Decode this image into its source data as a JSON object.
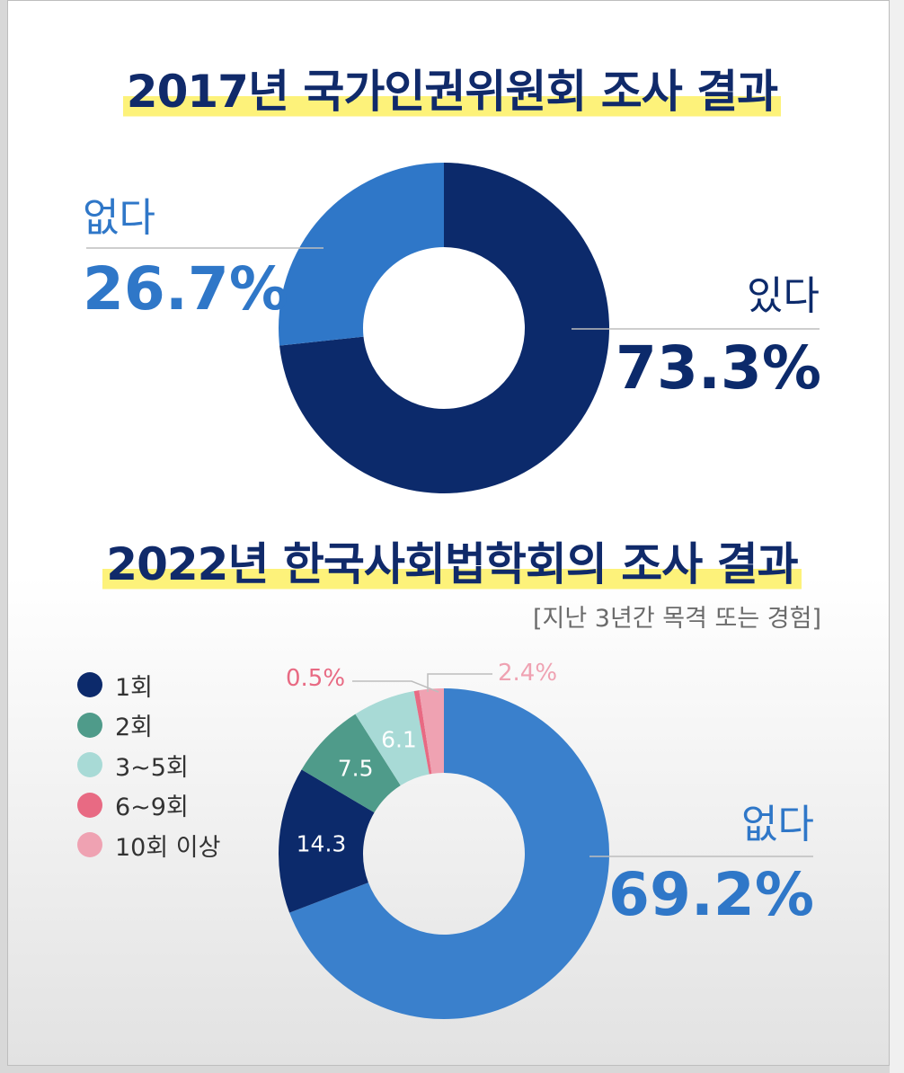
{
  "titles": {
    "top": "2017년 국가인권위원회 조사 결과",
    "bottom": "2022년 한국사회법학회의 조사 결과",
    "bottom_sub": "[지난 3년간 목격 또는 경험]"
  },
  "colors": {
    "navy": "#0c2a6b",
    "blue": "#2f77c8",
    "mid_blue": "#3a80cc",
    "teal": "#4f9b8a",
    "light_teal": "#a8dad6",
    "red_pink": "#e86a83",
    "pink": "#efa2b2",
    "highlight": "#fdf27a"
  },
  "chart_data": [
    {
      "type": "pie",
      "title": "2017년 국가인권위원회 조사 결과",
      "slices": [
        {
          "label": "있다",
          "value": 73.3,
          "display": "73.3%",
          "color": "#0c2a6b"
        },
        {
          "label": "없다",
          "value": 26.7,
          "display": "26.7%",
          "color": "#2f77c8"
        }
      ]
    },
    {
      "type": "pie",
      "title": "2022년 한국사회법학회의 조사 결과",
      "subtitle": "[지난 3년간 목격 또는 경험]",
      "legend": [
        "1회",
        "2회",
        "3~5회",
        "6~9회",
        "10회 이상"
      ],
      "slices": [
        {
          "label": "없다",
          "value": 69.2,
          "display": "69.2%",
          "color": "#3a80cc"
        },
        {
          "label": "1회",
          "value": 14.3,
          "display": "14.3",
          "color": "#0c2a6b"
        },
        {
          "label": "2회",
          "value": 7.5,
          "display": "7.5",
          "color": "#4f9b8a"
        },
        {
          "label": "3~5회",
          "value": 6.1,
          "display": "6.1",
          "color": "#a8dad6"
        },
        {
          "label": "6~9회",
          "value": 0.5,
          "display": "0.5%",
          "color": "#e86a83"
        },
        {
          "label": "10회 이상",
          "value": 2.4,
          "display": "2.4%",
          "color": "#efa2b2"
        }
      ]
    }
  ]
}
